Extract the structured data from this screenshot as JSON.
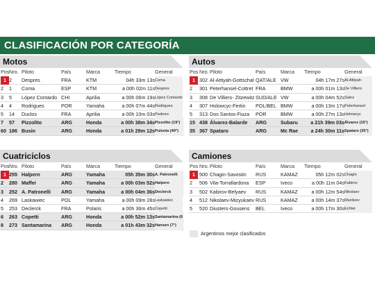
{
  "title": "CLASIFICACIÓN POR CATEGORÍA",
  "colors": {
    "header_green": "#1f6e45",
    "first_place_red": "#d0202a",
    "argentine_highlight": "#e6e6e6"
  },
  "legend": "Argentinos mejor clasificados",
  "panels": [
    {
      "name": "Motos",
      "columns": [
        "Pos.",
        "Nro.",
        "Piloto",
        "País",
        "Marca",
        "Tiempo",
        "General"
      ],
      "rows": [
        {
          "pos": "1",
          "nro": "2",
          "piloto": "Despres",
          "pais": "FRA",
          "marca": "KTM",
          "tiempo": "04h 33m 13s",
          "general": "Coma",
          "arg": false
        },
        {
          "pos": "2",
          "nro": "1",
          "piloto": "Coma",
          "pais": "ESP",
          "marca": "KTM",
          "tiempo": "a 00h 02m 11s",
          "general": "Despres",
          "arg": false
        },
        {
          "pos": "3",
          "nro": "5",
          "piloto": "López Contardo",
          "pais": "CHI",
          "marca": "Aprilia",
          "tiempo": "a 00h 06m 19s",
          "general": "López Contardo",
          "arg": false
        },
        {
          "pos": "4",
          "nro": "4",
          "piloto": "Rodrigues",
          "pais": "POR",
          "marca": "Yamaha",
          "tiempo": "a 00h 07m 44s",
          "general": "Rodrigues",
          "arg": false
        },
        {
          "pos": "5",
          "nro": "14",
          "piloto": "Duclos",
          "pais": "FRA",
          "marca": "Aprilia",
          "tiempo": "a 00h 10m 03s",
          "general": "Pedrero",
          "arg": false
        },
        {
          "pos": "7",
          "nro": "57",
          "piloto": "Pizzolito",
          "pais": "ARG",
          "marca": "Honda",
          "tiempo": "a 00h 38m 34s",
          "general": "Pizzolito (19°)",
          "arg": true
        },
        {
          "pos": "60",
          "nro": "186",
          "piloto": "Busin",
          "pais": "ARG",
          "marca": "Honda",
          "tiempo": "a 01h 29m 12s",
          "general": "Pulenta (49°)",
          "arg": true
        }
      ]
    },
    {
      "name": "Autos",
      "columns": [
        "Pos.",
        "Nro.",
        "Piloto",
        "País",
        "Marca",
        "Tiempo",
        "General"
      ],
      "rows": [
        {
          "pos": "1",
          "nro": "302",
          "piloto": "Al-Attiyah-Gottschalk",
          "pais": "QAT/ALE",
          "marca": "VW",
          "tiempo": "04h 17m 27s",
          "general": "Al-Attiyah",
          "arg": false
        },
        {
          "pos": "2",
          "nro": "301",
          "piloto": "Peterhansel-Cottret",
          "pais": "FRA",
          "marca": "BMW",
          "tiempo": "a 00h 01m 13s",
          "general": "De Villiers",
          "arg": false
        },
        {
          "pos": "3",
          "nro": "308",
          "piloto": "De Villiers- Zitzewitz",
          "pais": "SUD/ALE",
          "marca": "VW",
          "tiempo": "a 00h 04m 52s",
          "general": "Sainz",
          "arg": false
        },
        {
          "pos": "4",
          "nro": "307",
          "piloto": "Holowcyc-Fertin",
          "pais": "POL/BEL",
          "marca": "BMW",
          "tiempo": "a 00h 13m 17s",
          "general": "Peterhansel",
          "arg": false
        },
        {
          "pos": "5",
          "nro": "313",
          "piloto": "Dos Santos-Fiuza",
          "pais": "POR",
          "marca": "BMW",
          "tiempo": "a 00h 27m 13s",
          "general": "Holowcyc",
          "arg": false
        },
        {
          "pos": "15",
          "nro": "438",
          "piloto": "Álvarez-Balarde",
          "pais": "ARG",
          "marca": "Subaru",
          "tiempo": "a 21h 39m 03s",
          "general": "Álvarez (15°)",
          "arg": true
        },
        {
          "pos": "35",
          "nro": "367",
          "piloto": "Spataro",
          "pais": "ARG",
          "marca": "Mc Rae",
          "tiempo": "a 24h 30m 11s",
          "general": "Spataro (35°)",
          "arg": true
        }
      ]
    },
    {
      "name": "Cuatriciclos",
      "columns": [
        "Pos.",
        "Nro.",
        "Piloto",
        "País",
        "Marca",
        "Tiempo",
        "General"
      ],
      "rows": [
        {
          "pos": "1",
          "nro": "255",
          "piloto": "Halpern",
          "pais": "ARG",
          "marca": "Yamaha",
          "tiempo": "05h 35m 30s",
          "general": "A. Patronelli",
          "arg": true
        },
        {
          "pos": "2",
          "nro": "280",
          "piloto": "Maffei",
          "pais": "ARG",
          "marca": "Yamaha",
          "tiempo": "a 00h 03m 52s",
          "general": "Halpern",
          "arg": true
        },
        {
          "pos": "3",
          "nro": "252",
          "piloto": "A. Patronelli",
          "pais": "ARG",
          "marca": "Yamaha",
          "tiempo": "a 00h 04m 36s",
          "general": "Declerck",
          "arg": true
        },
        {
          "pos": "4",
          "nro": "269",
          "piloto": "Laskawiec",
          "pais": "POL",
          "marca": "Yamaha",
          "tiempo": "a 00h 09m 28s",
          "general": "Laskawiec",
          "arg": false
        },
        {
          "pos": "5",
          "nro": "253",
          "piloto": "Declerck",
          "pais": "FRA",
          "marca": "Polaris",
          "tiempo": "a 00h 36m 45s",
          "general": "Copetti",
          "arg": false
        },
        {
          "pos": "6",
          "nro": "263",
          "piloto": "Copetti",
          "pais": "ARG",
          "marca": "Honda",
          "tiempo": "a 00h 52m 13s",
          "general": "Santamarina (6°)",
          "arg": true
        },
        {
          "pos": "8",
          "nro": "273",
          "piloto": "Santamarina",
          "pais": "ARG",
          "marca": "Honda",
          "tiempo": "a 01h 43m 32s",
          "general": "Hansen (7°)",
          "arg": true
        }
      ]
    },
    {
      "name": "Camiones",
      "columns": [
        "Pos.",
        "Nro.",
        "Piloto",
        "País",
        "Marca",
        "Tiempo",
        "General"
      ],
      "rows": [
        {
          "pos": "1",
          "nro": "500",
          "piloto": "Chagin-Savostin",
          "pais": "RUS",
          "marca": "KAMAZ",
          "tiempo": "05h 12m 02s",
          "general": "Chagin",
          "arg": false
        },
        {
          "pos": "2",
          "nro": "506",
          "piloto": "Vila-Torrallardona",
          "pais": "ESP",
          "marca": "Iveco",
          "tiempo": "a 00h 11m 04s",
          "general": "Kabirov",
          "arg": false
        },
        {
          "pos": "3",
          "nro": "502",
          "piloto": "Kabirov-Belyaev",
          "pais": "RUS",
          "marca": "KAMAZ",
          "tiempo": "a 00h 12m 54s",
          "general": "Nikolaev",
          "arg": false
        },
        {
          "pos": "4",
          "nro": "512",
          "piloto": "Nikolaev-Mizyukaev",
          "pais": "RUS",
          "marca": "KAMAZ",
          "tiempo": "a 00h 14m 37s",
          "general": "Mardeev",
          "arg": false
        },
        {
          "pos": "5",
          "nro": "520",
          "piloto": "Diusters-Gousens",
          "pais": "BEL",
          "marca": "Iveco",
          "tiempo": "a 00h 17m 30s",
          "general": "Echter",
          "arg": false
        }
      ]
    }
  ]
}
